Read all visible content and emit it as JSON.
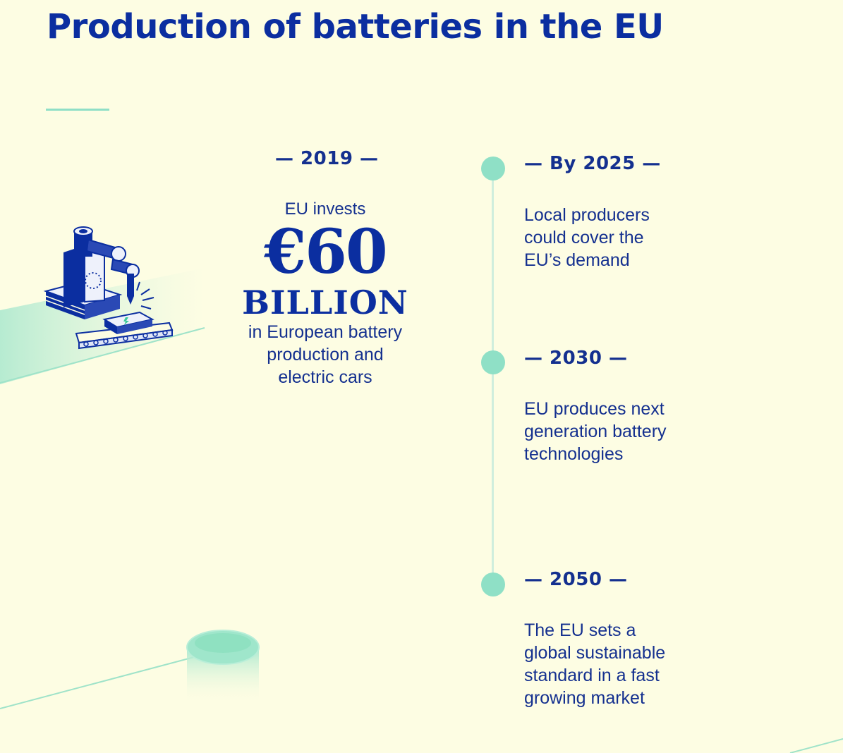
{
  "title": "Production of batteries in the EU",
  "invest": {
    "year": "— 2019 —",
    "lead": "EU invests",
    "amount": "€60",
    "unit": "BILLION",
    "desc_lines": [
      "in European battery",
      "production and",
      "electric cars"
    ]
  },
  "timeline": [
    {
      "year": "— By 2025 —",
      "lines": [
        "Local producers",
        "could cover the",
        "EU’s demand"
      ]
    },
    {
      "year": "— 2030 —",
      "lines": [
        "EU produces next",
        "generation battery",
        "technologies"
      ]
    },
    {
      "year": "— 2050 —",
      "lines": [
        "The EU sets a",
        "global sustainable",
        "standard in a fast",
        "growing market"
      ]
    }
  ],
  "colors": {
    "primary": "#0b2ea0",
    "accent": "#8fe0c6",
    "background": "#fdfde3"
  },
  "icons": {
    "illustration": "robot-arm-battery-factory-icon",
    "cylinder": "battery-cylinder-icon"
  }
}
